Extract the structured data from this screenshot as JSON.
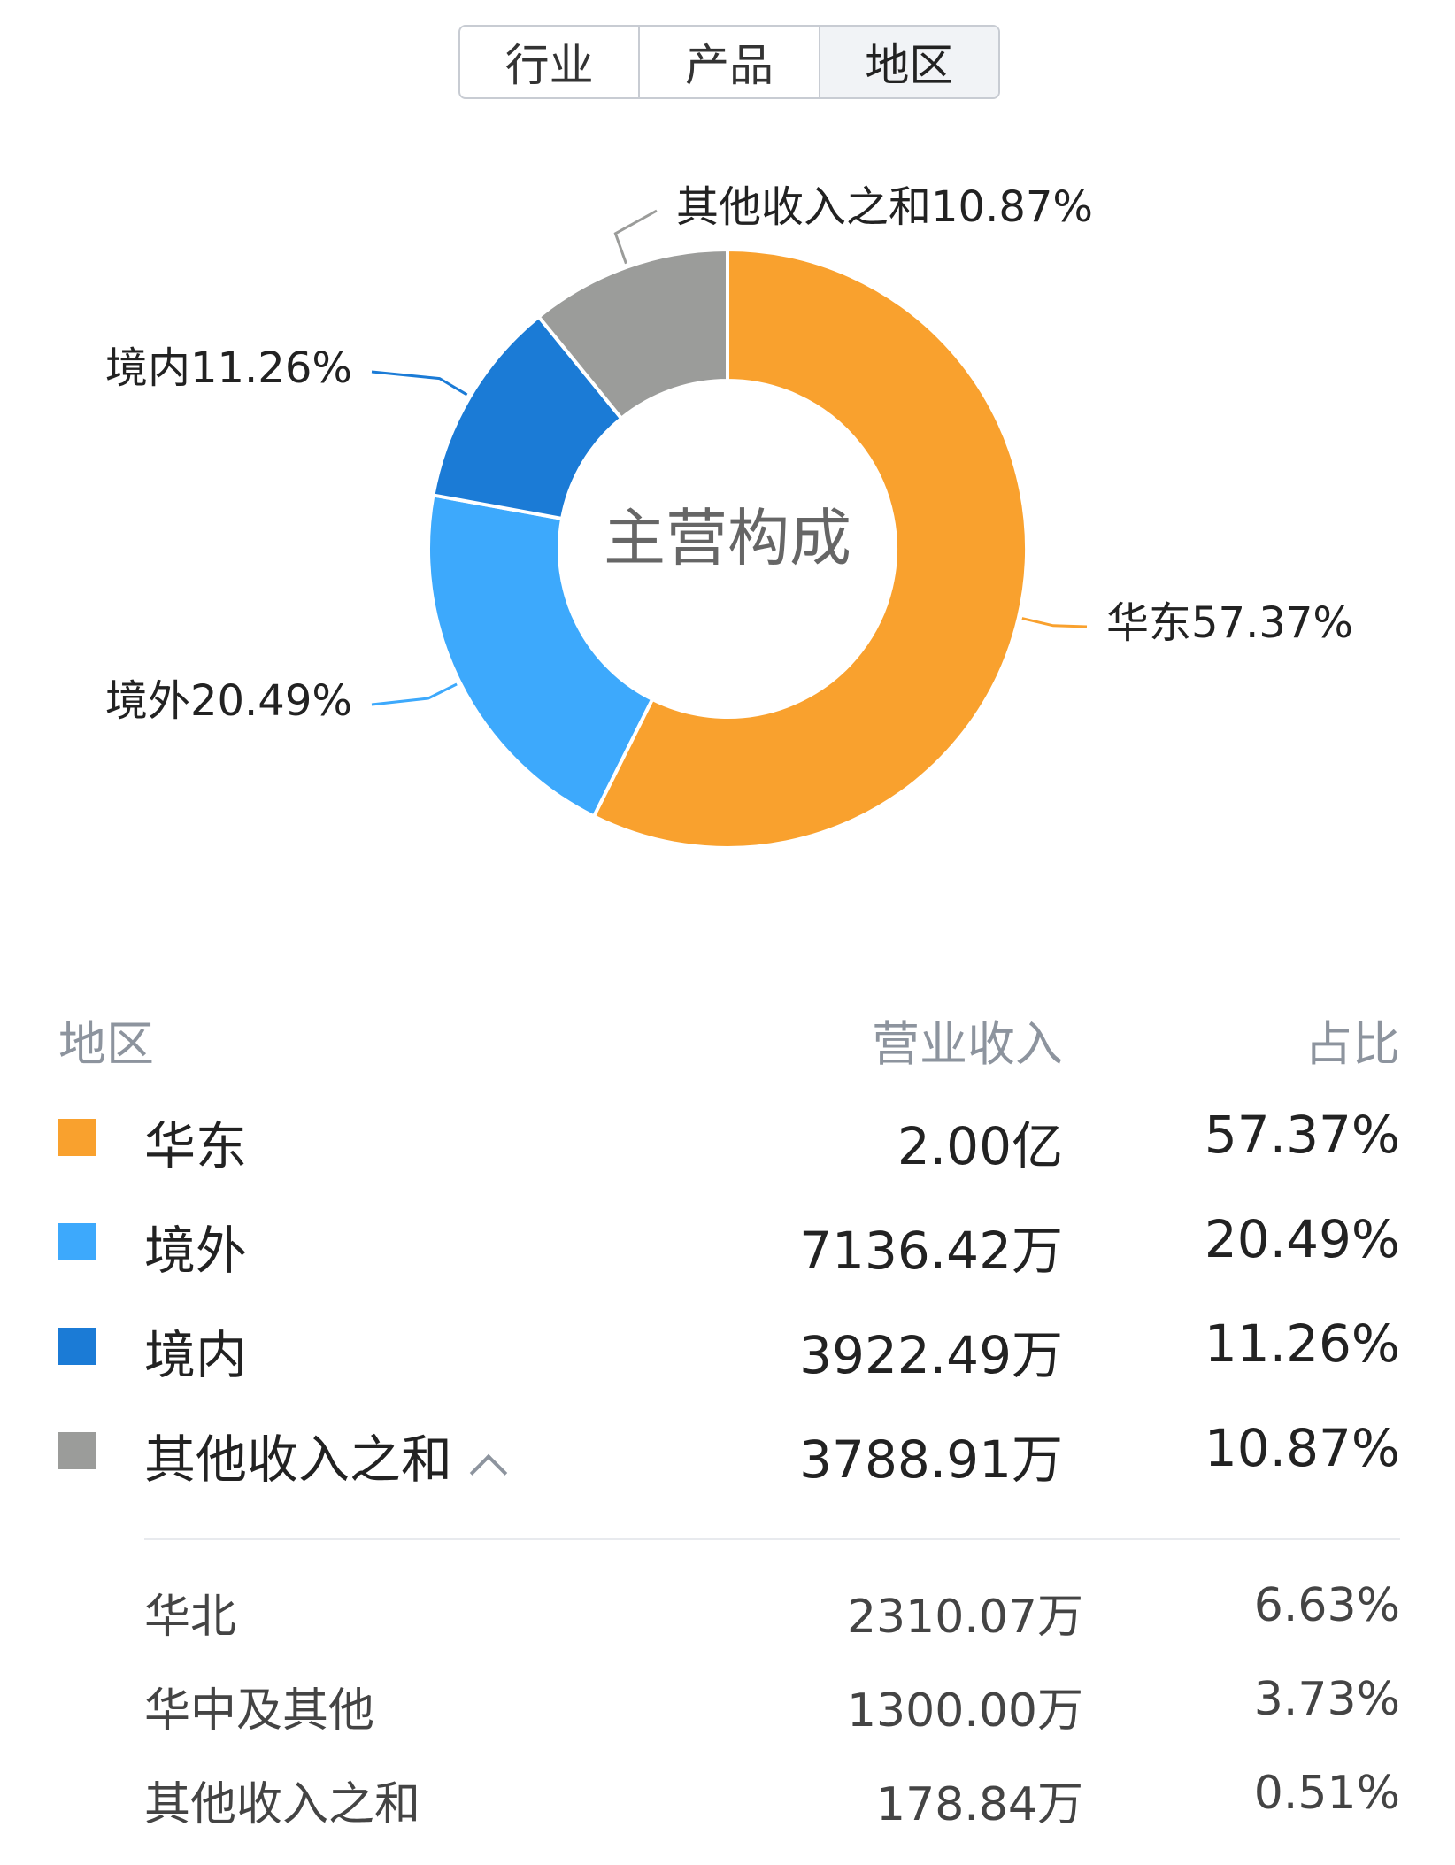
{
  "tabs": [
    {
      "label": "行业",
      "active": false
    },
    {
      "label": "产品",
      "active": false
    },
    {
      "label": "地区",
      "active": true
    }
  ],
  "chart_data": {
    "type": "pie",
    "style": "donut",
    "center_label": "主营构成",
    "slices": [
      {
        "name": "华东",
        "percent": 57.37,
        "label": "华东57.37%",
        "color": "#F9A12E"
      },
      {
        "name": "境外",
        "percent": 20.49,
        "label": "境外20.49%",
        "color": "#3DA9FC"
      },
      {
        "name": "境内",
        "percent": 11.26,
        "label": "境内11.26%",
        "color": "#1B7BD6"
      },
      {
        "name": "其他收入之和",
        "percent": 10.87,
        "label": "其他收入之和10.87%",
        "color": "#9B9C9A"
      }
    ]
  },
  "table": {
    "headers": {
      "region": "地区",
      "revenue": "营业收入",
      "share": "占比"
    },
    "rows": [
      {
        "name": "华东",
        "revenue": "2.00亿",
        "share": "57.37%",
        "color": "#F9A12E"
      },
      {
        "name": "境外",
        "revenue": "7136.42万",
        "share": "20.49%",
        "color": "#3DA9FC"
      },
      {
        "name": "境内",
        "revenue": "3922.49万",
        "share": "11.26%",
        "color": "#1B7BD6"
      },
      {
        "name": "其他收入之和",
        "revenue": "3788.91万",
        "share": "10.87%",
        "color": "#9B9C9A",
        "expanded": true
      }
    ],
    "subrows": [
      {
        "name": "华北",
        "revenue": "2310.07万",
        "share": "6.63%"
      },
      {
        "name": "华中及其他",
        "revenue": "1300.00万",
        "share": "3.73%"
      },
      {
        "name": "其他收入之和",
        "revenue": "178.84万",
        "share": "0.51%"
      }
    ]
  }
}
